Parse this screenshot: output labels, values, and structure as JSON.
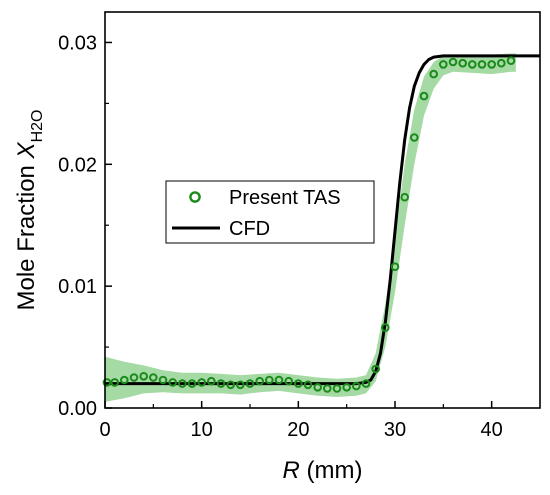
{
  "chart_data": {
    "type": "line",
    "xlabel_italic": "R",
    "xlabel_unit": " (mm)",
    "ylabel_main": "Mole Fraction ",
    "ylabel_italic": "X",
    "ylabel_sub": "H2O",
    "xlim": [
      0,
      45
    ],
    "ylim": [
      0,
      0.0325
    ],
    "xticks": [
      0,
      10,
      20,
      30,
      40
    ],
    "yticks": [
      0.0,
      0.01,
      0.02,
      0.03
    ],
    "ytick_labels": [
      "0.00",
      "0.01",
      "0.02",
      "0.03"
    ],
    "legend_position": "center-left",
    "grid": false,
    "series": [
      {
        "name": "Present TAS",
        "style": "open-circle",
        "color": "#1a8a1a",
        "x": [
          0.2,
          1,
          2,
          3,
          4,
          5,
          6,
          7,
          8,
          9,
          10,
          11,
          12,
          13,
          14,
          15,
          16,
          17,
          18,
          19,
          20,
          21,
          22,
          23,
          24,
          25,
          26,
          27,
          28,
          29,
          30,
          31,
          32,
          33,
          34,
          35,
          36,
          37,
          38,
          39,
          40,
          41,
          42
        ],
        "y": [
          0.0021,
          0.0021,
          0.0023,
          0.0025,
          0.0026,
          0.0025,
          0.0023,
          0.0021,
          0.002,
          0.002,
          0.0021,
          0.0022,
          0.002,
          0.0019,
          0.0019,
          0.002,
          0.0022,
          0.0023,
          0.0023,
          0.0022,
          0.002,
          0.0019,
          0.0017,
          0.0016,
          0.0016,
          0.0017,
          0.0018,
          0.002,
          0.0032,
          0.0066,
          0.0116,
          0.0173,
          0.0222,
          0.0256,
          0.0274,
          0.0282,
          0.0284,
          0.0283,
          0.0282,
          0.0282,
          0.0282,
          0.0283,
          0.0285
        ]
      },
      {
        "name": "CFD",
        "style": "line",
        "color": "#000000",
        "x": [
          0,
          5,
          10,
          15,
          20,
          25,
          26,
          27,
          27.5,
          28,
          28.5,
          29,
          29.5,
          30,
          30.5,
          31,
          31.5,
          32,
          32.5,
          33,
          33.5,
          34,
          35,
          36,
          38,
          40,
          45
        ],
        "y": [
          0.002,
          0.002,
          0.002,
          0.002,
          0.002,
          0.002,
          0.002,
          0.0021,
          0.0023,
          0.003,
          0.0045,
          0.007,
          0.0105,
          0.0145,
          0.0185,
          0.022,
          0.0246,
          0.0264,
          0.0275,
          0.0282,
          0.0286,
          0.0288,
          0.0289,
          0.0289,
          0.0289,
          0.0289,
          0.0289
        ]
      }
    ],
    "uncertainty_band": {
      "color": "#8fd18f",
      "x": [
        0,
        2,
        4,
        6,
        8,
        10,
        12,
        14,
        16,
        18,
        20,
        22,
        24,
        26,
        27,
        28,
        29,
        30,
        31,
        32,
        33,
        34,
        35,
        36,
        38,
        40,
        42,
        42.5
      ],
      "upper": [
        0.0042,
        0.0038,
        0.0035,
        0.0031,
        0.0029,
        0.0029,
        0.0028,
        0.0027,
        0.0028,
        0.0029,
        0.0027,
        0.0025,
        0.0024,
        0.0025,
        0.0027,
        0.0045,
        0.0085,
        0.014,
        0.02,
        0.0245,
        0.0272,
        0.0284,
        0.0289,
        0.029,
        0.029,
        0.029,
        0.0291,
        0.0291
      ],
      "lower": [
        0.0005,
        0.0008,
        0.0012,
        0.0013,
        0.0012,
        0.0012,
        0.0012,
        0.0011,
        0.0013,
        0.0014,
        0.0012,
        0.001,
        0.0009,
        0.001,
        0.0012,
        0.0022,
        0.005,
        0.0095,
        0.015,
        0.02,
        0.024,
        0.0262,
        0.0273,
        0.0276,
        0.0275,
        0.0274,
        0.0276,
        0.0276
      ]
    }
  }
}
